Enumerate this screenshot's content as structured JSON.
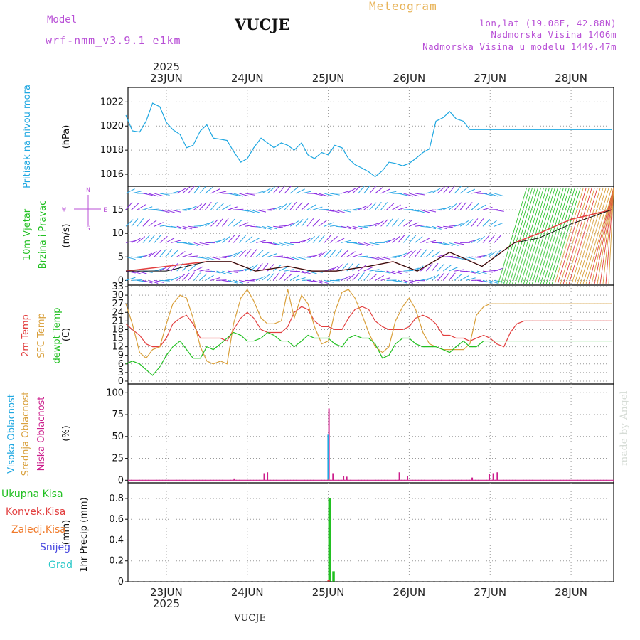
{
  "header": {
    "title": "VUCJE",
    "meteogram_label": "Meteogram",
    "model_label": "Model",
    "model_name": "wrf-nmm_v3.9.1 e1km",
    "coords": "lon,lat (19.08E, 42.88N)",
    "elevation": "Nadmorska Visina 1406m",
    "model_elevation": "Nadmorska Visina u modelu 1449.47m"
  },
  "watermark": "made by Angel",
  "footer_station": "VUCJE",
  "colors": {
    "pressure": "#1ea7e1",
    "temp2m": "#e23f3f",
    "sfc_temp": "#d9a03c",
    "dewpoint": "#22c022",
    "high_cloud": "#1ea7e1",
    "mid_cloud": "#d9a03c",
    "low_cloud": "#cc1e8c",
    "total_precip": "#22c022",
    "convective": "#e23f3f",
    "frozen": "#f07a2a",
    "snow": "#4a4ae0",
    "graupel": "#2ac8c8",
    "wind_purple": "#8a2be2",
    "wind_blue": "#29a6e6",
    "wind_green": "#34c434",
    "wind_gust_red": "#e23f3f",
    "axis_purple": "#b84fd6"
  },
  "chart_data": [
    {
      "type": "line",
      "panel": "pressure",
      "ylabel": "Pritisak na nivou mora",
      "unit": "(hPa)",
      "ylim": [
        1015,
        1023.2
      ],
      "yticks": [
        1016,
        1018,
        1020,
        1022
      ],
      "x_days": [
        0,
        0.08,
        0.17,
        0.25,
        0.33,
        0.42,
        0.5,
        0.58,
        0.67,
        0.75,
        0.83,
        0.92,
        1.0,
        1.08,
        1.17,
        1.25,
        1.33,
        1.42,
        1.5,
        1.58,
        1.67,
        1.75,
        1.83,
        1.92,
        2.0,
        2.08,
        2.17,
        2.25,
        2.33,
        2.42,
        2.5,
        2.58,
        2.67,
        2.75,
        2.83,
        2.92,
        3.0,
        3.08,
        3.17,
        3.25,
        3.33,
        3.42,
        3.5,
        3.58,
        3.67,
        3.75,
        3.83,
        3.92,
        4.0,
        4.08,
        4.17,
        4.25,
        4.33,
        4.42,
        4.5,
        4.58,
        4.67,
        4.75,
        4.83,
        4.92,
        5.0,
        5.08,
        5.17,
        5.25,
        5.33,
        5.42,
        5.5,
        5.58,
        5.67,
        5.75,
        5.83,
        5.92,
        6.0
      ],
      "values": [
        1020.9,
        1019.6,
        1019.5,
        1020.4,
        1021.9,
        1021.6,
        1020.3,
        1019.7,
        1019.3,
        1018.2,
        1018.4,
        1019.6,
        1020.1,
        1019.0,
        1018.9,
        1018.8,
        1017.9,
        1017.0,
        1017.3,
        1018.2,
        1019.0,
        1018.6,
        1018.2,
        1018.6,
        1018.4,
        1018.0,
        1018.6,
        1017.6,
        1017.3,
        1017.8,
        1017.6,
        1018.4,
        1018.2,
        1017.3,
        1016.8,
        1016.5,
        1016.2,
        1015.8,
        1016.3,
        1017.0,
        1016.9,
        1016.7,
        1016.9,
        1017.3,
        1017.8,
        1018.1,
        1020.4,
        1020.7,
        1021.2,
        1020.6,
        1020.4,
        1019.7,
        1019.7,
        1019.7,
        1019.7,
        1019.7,
        1019.7,
        1019.7,
        1019.7,
        1019.7,
        1019.7,
        1019.7,
        1019.7,
        1019.7,
        1019.7,
        1019.7,
        1019.7,
        1019.7,
        1019.7,
        1019.7,
        1019.7,
        1019.7,
        1019.7
      ]
    },
    {
      "type": "line",
      "panel": "wind",
      "ylabel_lines": [
        "10m Vjetar",
        "Brzina i Pravac"
      ],
      "unit": "(m/s)",
      "direction_key": [
        "N",
        "E",
        "S",
        "W"
      ],
      "ylim": [
        -1,
        20
      ],
      "yticks": [
        0,
        5,
        10,
        15
      ],
      "series": [
        {
          "name": "speed",
          "x_days": [
            0,
            0.5,
            1.0,
            1.3,
            1.6,
            2.0,
            2.3,
            2.6,
            3.0,
            3.3,
            3.6,
            4.0,
            4.4,
            4.8,
            5.1,
            5.5,
            6.0
          ],
          "values": [
            2,
            2,
            4,
            4,
            2,
            3,
            2,
            2,
            3,
            4,
            2,
            6,
            3,
            8,
            9,
            12,
            15
          ]
        },
        {
          "name": "gust",
          "x_days": [
            0,
            0.5,
            1.0,
            1.3,
            1.6,
            2.0,
            2.3,
            2.6,
            3.0,
            3.3,
            3.6,
            4.0,
            4.4,
            4.8,
            5.1,
            5.5,
            6.0
          ],
          "values": [
            2,
            3,
            4,
            4,
            2,
            3,
            2,
            2,
            3,
            4,
            2,
            6,
            3,
            8,
            10,
            13,
            15
          ]
        }
      ]
    },
    {
      "type": "line",
      "panel": "temperature",
      "ylabel_lines": [
        "2m Temp",
        "SFC Temp",
        "dewpt Temp"
      ],
      "unit": "(C)",
      "ylim": [
        -1,
        33.5
      ],
      "yticks": [
        0,
        3,
        6,
        9,
        12,
        15,
        18,
        21,
        24,
        27,
        30,
        33
      ],
      "x_days": [
        0,
        0.08,
        0.17,
        0.25,
        0.33,
        0.42,
        0.5,
        0.58,
        0.67,
        0.75,
        0.83,
        0.92,
        1.0,
        1.08,
        1.17,
        1.25,
        1.33,
        1.42,
        1.5,
        1.58,
        1.67,
        1.75,
        1.83,
        1.92,
        2.0,
        2.08,
        2.17,
        2.25,
        2.33,
        2.42,
        2.5,
        2.58,
        2.67,
        2.75,
        2.83,
        2.92,
        3.0,
        3.08,
        3.17,
        3.25,
        3.33,
        3.42,
        3.5,
        3.58,
        3.67,
        3.75,
        3.83,
        3.92,
        4.0,
        4.08,
        4.17,
        4.25,
        4.33,
        4.42,
        4.5,
        4.58,
        4.67,
        4.75,
        4.83,
        4.92,
        5.0,
        5.08,
        5.17,
        5.25,
        5.33,
        5.42,
        5.5,
        5.58,
        5.67,
        5.75,
        5.83,
        5.92,
        6.0
      ],
      "series": [
        {
          "name": "2m Temp",
          "values": [
            20,
            18,
            16,
            13,
            12,
            12,
            15,
            20,
            22,
            23,
            20,
            15,
            15,
            15,
            15,
            14,
            18,
            22,
            24,
            22,
            18,
            17,
            17,
            17,
            19,
            24,
            26,
            25,
            21,
            19,
            19,
            18,
            18,
            22,
            25,
            26,
            25,
            21,
            19,
            18,
            18,
            18,
            19,
            22,
            23,
            22,
            20,
            16,
            16,
            15,
            15,
            14,
            15,
            16,
            15,
            13,
            12,
            17,
            20,
            21,
            21,
            21,
            21,
            21,
            21,
            21,
            21,
            21,
            21,
            21,
            21,
            21,
            21
          ]
        },
        {
          "name": "SFC Temp",
          "values": [
            27,
            20,
            10,
            8,
            11,
            12,
            20,
            27,
            30,
            29,
            22,
            12,
            7,
            6,
            7,
            6,
            20,
            29,
            32,
            28,
            22,
            20,
            20,
            21,
            32,
            22,
            30,
            27,
            19,
            13,
            14,
            24,
            31,
            32,
            29,
            23,
            17,
            12,
            10,
            12,
            21,
            26,
            29,
            25,
            17,
            13,
            12,
            11,
            11,
            11,
            11,
            13,
            23,
            26,
            27,
            27,
            27,
            27,
            27,
            27,
            27,
            27,
            27,
            27,
            27,
            27,
            27,
            27,
            27,
            27,
            27,
            27,
            27
          ]
        },
        {
          "name": "dewpt Temp",
          "values": [
            6,
            7,
            6,
            4,
            2,
            5,
            9,
            12,
            14,
            11,
            8,
            8,
            12,
            11,
            13,
            15,
            17,
            16,
            14,
            14,
            15,
            17,
            16,
            14,
            14,
            12,
            14,
            16,
            15,
            15,
            15,
            13,
            12,
            15,
            16,
            15,
            15,
            13,
            8,
            9,
            13,
            15,
            15,
            13,
            12,
            12,
            12,
            11,
            10,
            12,
            14,
            12,
            12,
            14,
            14,
            14,
            14,
            14,
            14,
            14,
            14,
            14,
            14,
            14,
            14,
            14,
            14,
            14,
            14,
            14,
            14,
            14,
            14
          ]
        }
      ]
    },
    {
      "type": "bar",
      "panel": "cloud",
      "ylabel_lines": [
        "Visoka Oblacnost",
        "Srednja Oblacnost",
        "Niska Oblacnost"
      ],
      "unit": "(%)",
      "ylim": [
        -3,
        110
      ],
      "yticks": [
        0,
        25,
        50,
        75,
        100
      ],
      "series": [
        {
          "name": "Niska Oblacnost",
          "x_days": [
            1.33,
            1.7,
            1.74,
            2.5,
            2.55,
            2.68,
            2.72,
            3.37,
            3.47,
            4.27,
            4.48,
            4.53,
            4.58
          ],
          "values": [
            2,
            8,
            9,
            82,
            8,
            5,
            4,
            9,
            5,
            3,
            7,
            8,
            9
          ]
        },
        {
          "name": "Visoka Oblacnost",
          "x_days": [
            2.49
          ],
          "values": [
            52
          ]
        },
        {
          "name": "Srednja Oblacnost",
          "x_days": [
            2.5
          ],
          "values": [
            2
          ]
        }
      ]
    },
    {
      "type": "bar",
      "panel": "precipitation",
      "ylabel": "1hr Precip",
      "unit": "(mm)",
      "ylim": [
        0,
        0.95
      ],
      "yticks": [
        0,
        0.2,
        0.4,
        0.6,
        0.8
      ],
      "series": [
        {
          "name": "Ukupna Kisa",
          "x_days": [
            2.5,
            2.55
          ],
          "values": [
            0.8,
            0.1
          ]
        },
        {
          "name": "Konvek.Kisa",
          "x_days": [
            2.49
          ],
          "values": [
            0.02
          ]
        },
        {
          "name": "Zaledj.Kisa",
          "x_days": [],
          "values": []
        },
        {
          "name": "Snijeg",
          "x_days": [],
          "values": []
        },
        {
          "name": "Grad",
          "x_days": [],
          "values": []
        }
      ]
    }
  ],
  "x_axis": {
    "year": "2025",
    "day_labels": [
      "23JUN",
      "24JUN",
      "25JUN",
      "26JUN",
      "27JUN",
      "28JUN"
    ]
  }
}
